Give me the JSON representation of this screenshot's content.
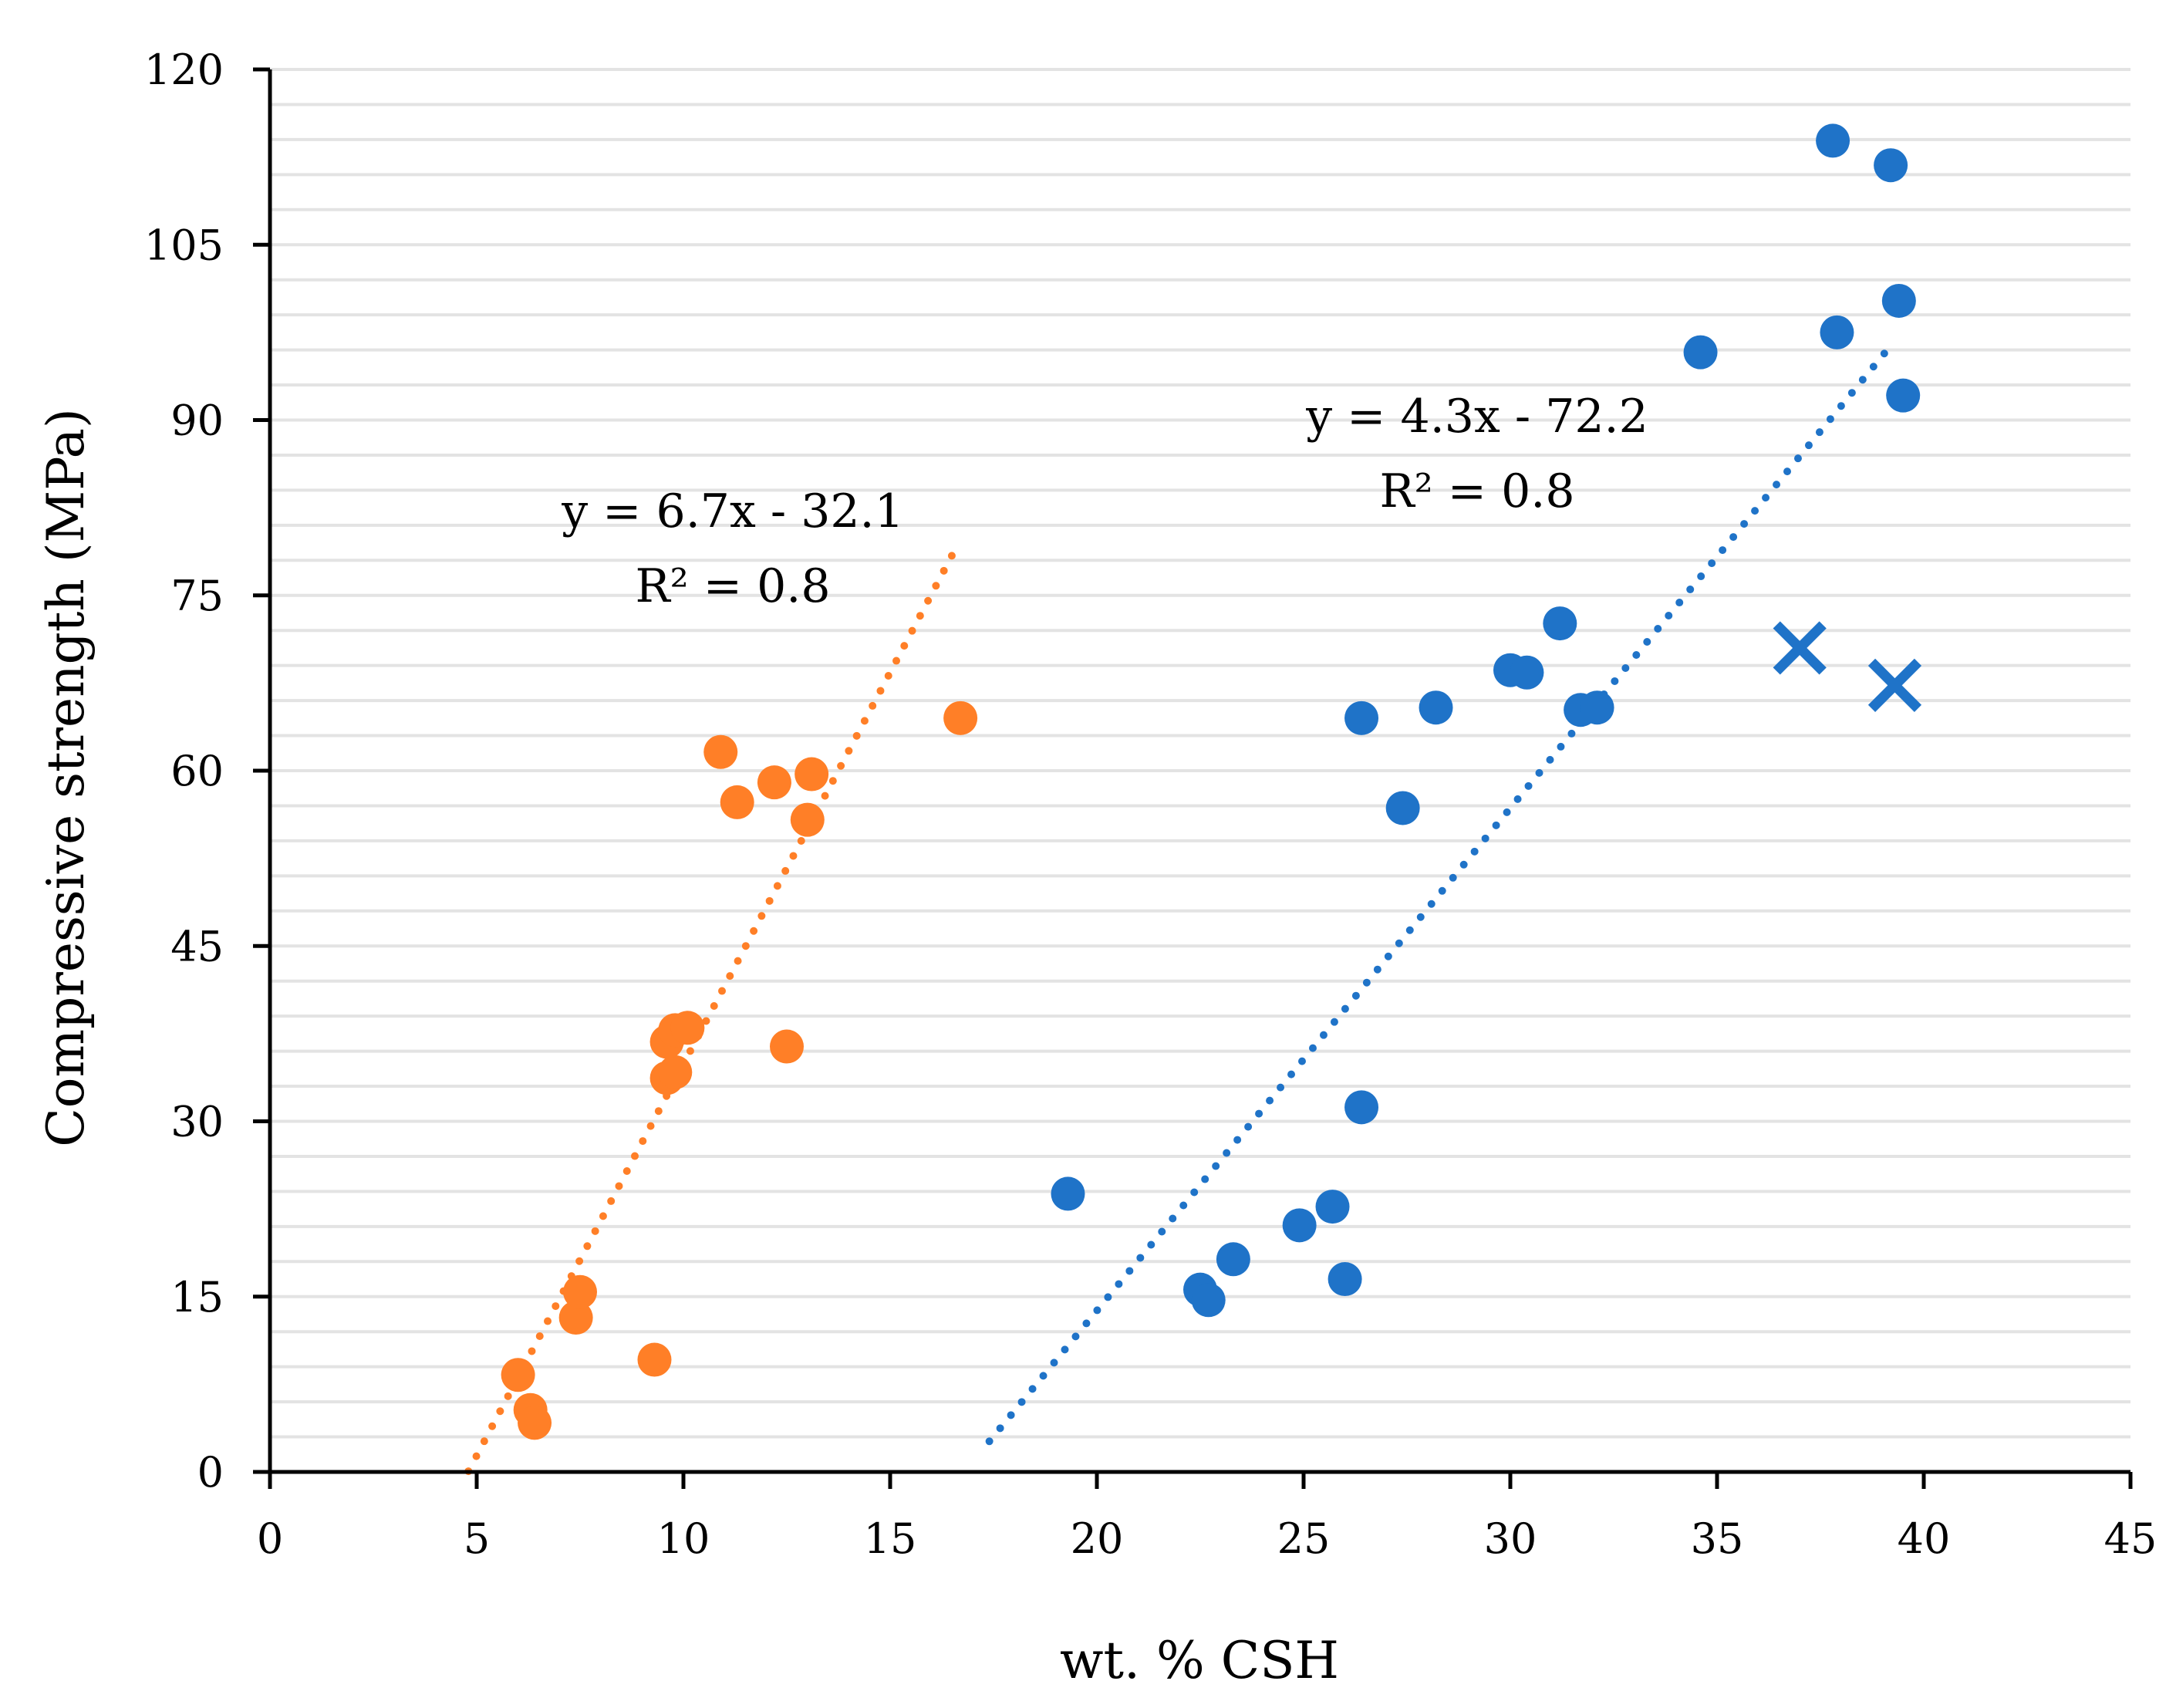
{
  "chart_data": {
    "type": "scatter",
    "title": "",
    "xlabel": "wt. % CSH",
    "ylabel": "Compressive strength (MPa)",
    "xlim": [
      0,
      45
    ],
    "ylim": [
      0,
      120
    ],
    "xticks": [
      0,
      5,
      10,
      15,
      20,
      25,
      30,
      35,
      40,
      45
    ],
    "yticks": [
      0,
      15,
      30,
      45,
      60,
      75,
      90,
      105,
      120
    ],
    "minor_grid_step": 3,
    "grid": true,
    "series": [
      {
        "name": "orange",
        "marker": "circle",
        "color": "#FF7F27",
        "points": [
          [
            6.0,
            8.3
          ],
          [
            6.3,
            5.3
          ],
          [
            6.4,
            4.2
          ],
          [
            7.4,
            13.2
          ],
          [
            7.5,
            15.4
          ],
          [
            9.3,
            9.6
          ],
          [
            9.6,
            33.7
          ],
          [
            9.8,
            34.2
          ],
          [
            9.6,
            36.8
          ],
          [
            9.8,
            37.8
          ],
          [
            10.1,
            38.0
          ],
          [
            10.9,
            61.6
          ],
          [
            11.3,
            57.3
          ],
          [
            12.2,
            59.0
          ],
          [
            12.5,
            36.4
          ],
          [
            13.0,
            55.8
          ],
          [
            13.1,
            59.7
          ],
          [
            16.7,
            64.5
          ]
        ],
        "trendline": {
          "slope": 6.7,
          "intercept": -32.1,
          "x_range": [
            4.8,
            16.6
          ],
          "style": "dotted"
        },
        "equation": "y = 6.7x - 32.1",
        "r2": "R² = 0.8"
      },
      {
        "name": "blue",
        "marker": "circle",
        "color": "#1F73C8",
        "points": [
          [
            19.3,
            23.8
          ],
          [
            22.5,
            15.6
          ],
          [
            22.7,
            14.7
          ],
          [
            23.3,
            18.2
          ],
          [
            24.9,
            21.1
          ],
          [
            25.7,
            22.7
          ],
          [
            26.0,
            16.5
          ],
          [
            26.4,
            64.5
          ],
          [
            26.4,
            31.2
          ],
          [
            27.4,
            56.8
          ],
          [
            28.2,
            65.4
          ],
          [
            30.0,
            68.6
          ],
          [
            30.4,
            68.4
          ],
          [
            31.2,
            72.6
          ],
          [
            31.7,
            65.2
          ],
          [
            32.1,
            65.4
          ],
          [
            34.6,
            95.8
          ],
          [
            37.8,
            113.9
          ],
          [
            37.9,
            97.5
          ],
          [
            39.2,
            111.8
          ],
          [
            39.4,
            100.2
          ],
          [
            39.5,
            92.1
          ]
        ],
        "trendline": {
          "slope": 4.3,
          "intercept": -72.2,
          "x_range": [
            17.4,
            39.3
          ],
          "style": "dotted"
        },
        "equation": "y = 4.3x - 72.2",
        "r2": "R² = 0.8"
      },
      {
        "name": "blue-outliers",
        "marker": "x",
        "color": "#1F73C8",
        "points": [
          [
            37.0,
            70.5
          ],
          [
            39.3,
            67.3
          ]
        ]
      }
    ]
  }
}
